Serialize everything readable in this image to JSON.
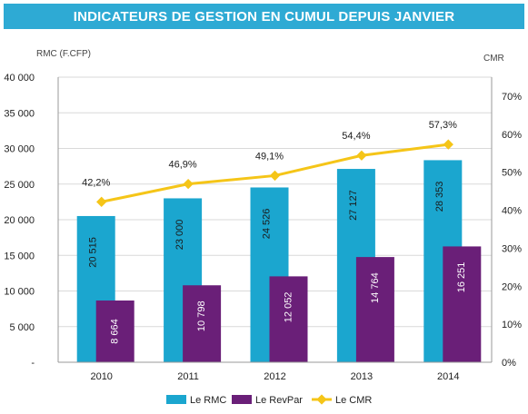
{
  "header": {
    "title": "INDICATEURS DE GESTION EN CUMUL DEPUIS JANVIER"
  },
  "chart_data": {
    "type": "bar",
    "title": "INDICATEURS DE GESTION EN CUMUL DEPUIS JANVIER",
    "categories": [
      "2010",
      "2011",
      "2012",
      "2013",
      "2014"
    ],
    "ylabel_left": "RMC (F.CFP)",
    "ylabel_right": "CMR",
    "ylim_left": [
      0,
      40000
    ],
    "ylim_right": [
      0,
      75
    ],
    "left_ticks": [
      "-",
      "5 000",
      "10 000",
      "15 000",
      "20 000",
      "25 000",
      "30 000",
      "35 000",
      "40 000"
    ],
    "right_ticks": [
      "0%",
      "10%",
      "20%",
      "30%",
      "40%",
      "50%",
      "60%",
      "70%"
    ],
    "series": [
      {
        "name": "Le RMC",
        "type": "bar",
        "color": "#1ba6cf",
        "values": [
          20515,
          23000,
          24526,
          27127,
          28353
        ],
        "labels": [
          "20 515",
          "23 000",
          "24 526",
          "27 127",
          "28 353"
        ]
      },
      {
        "name": "Le RevPar",
        "type": "bar",
        "color": "#6a1f78",
        "values": [
          8664,
          10798,
          12052,
          14764,
          16251
        ],
        "labels": [
          "8 664",
          "10 798",
          "12 052",
          "14 764",
          "16 251"
        ]
      },
      {
        "name": "Le CMR",
        "type": "line",
        "axis": "right",
        "color": "#f5c518",
        "values": [
          42.2,
          46.9,
          49.1,
          54.4,
          57.3
        ],
        "labels": [
          "42,2%",
          "46,9%",
          "49,1%",
          "54,4%",
          "57,3%"
        ]
      }
    ],
    "grid": true,
    "legend": "bottom"
  }
}
